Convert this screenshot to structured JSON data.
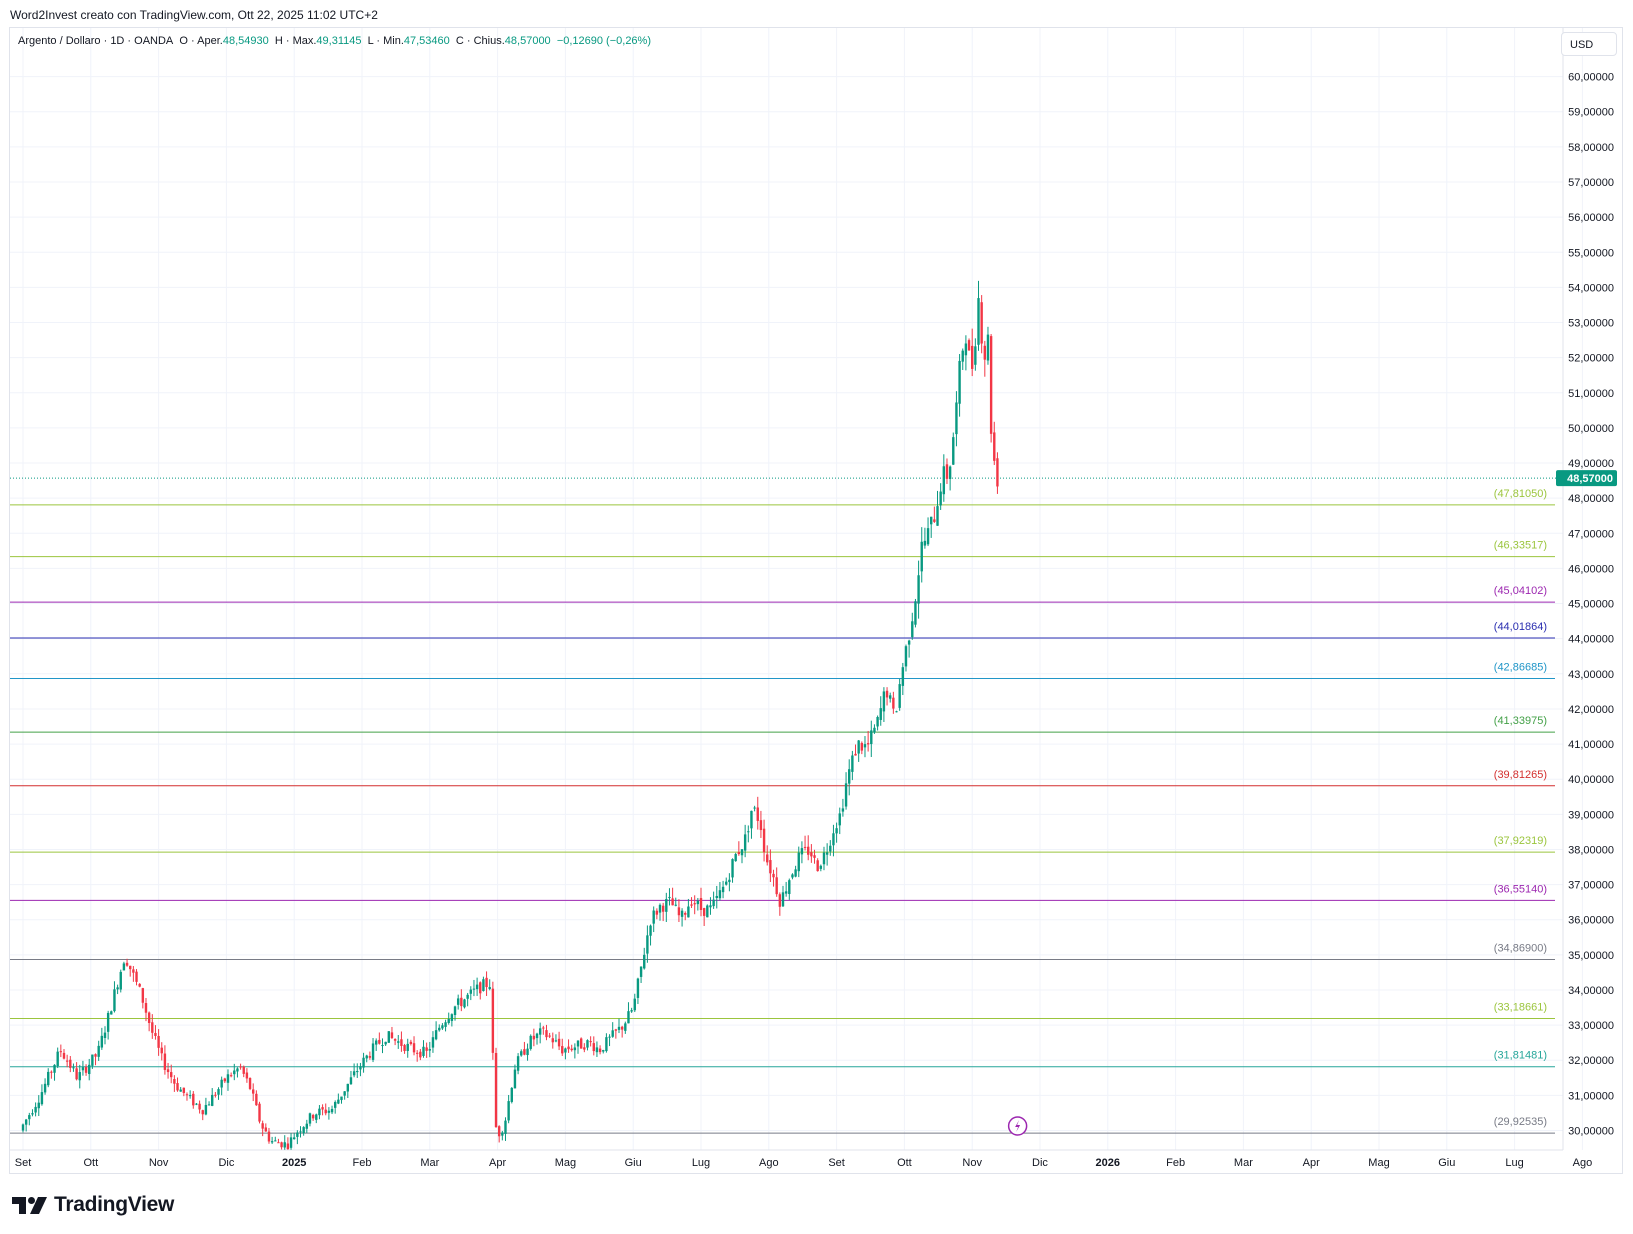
{
  "caption": "Word2Invest creato con TradingView.com, Ott 22, 2025 11:02 UTC+2",
  "legend": {
    "symbol": "Argento / Dollaro · 1D · OANDA",
    "open_label": "O · Aper.",
    "open": "48,54930",
    "high_label": "H · Max.",
    "high": "49,31145",
    "low_label": "L · Min.",
    "low": "47,53460",
    "close_label": "C · Chius.",
    "close": "48,57000",
    "change": "−0,12690 (−0,26%)"
  },
  "currency": "USD",
  "brand": "TradingView",
  "colors": {
    "up": "#089981",
    "down": "#f23645",
    "price_label_bg": "#089981",
    "grid": "#f0f3fa",
    "event_icon": "#9c27b0"
  },
  "chart_data": {
    "type": "candlestick",
    "ylim": [
      29.5,
      60.6
    ],
    "y_ticks": [
      "30,00000",
      "31,00000",
      "32,00000",
      "33,00000",
      "34,00000",
      "35,00000",
      "36,00000",
      "37,00000",
      "38,00000",
      "39,00000",
      "40,00000",
      "41,00000",
      "42,00000",
      "43,00000",
      "44,00000",
      "45,00000",
      "46,00000",
      "47,00000",
      "48,00000",
      "49,00000",
      "50,00000",
      "51,00000",
      "52,00000",
      "53,00000",
      "54,00000",
      "55,00000",
      "56,00000",
      "57,00000",
      "58,00000",
      "59,00000",
      "60,00000"
    ],
    "x_ticks": [
      {
        "label": "Set",
        "month": 0,
        "bold": false
      },
      {
        "label": "Ott",
        "month": 1,
        "bold": false
      },
      {
        "label": "Nov",
        "month": 2,
        "bold": false
      },
      {
        "label": "Dic",
        "month": 3,
        "bold": false
      },
      {
        "label": "2025",
        "month": 4,
        "bold": true
      },
      {
        "label": "Feb",
        "month": 5,
        "bold": false
      },
      {
        "label": "Mar",
        "month": 6,
        "bold": false
      },
      {
        "label": "Apr",
        "month": 7,
        "bold": false
      },
      {
        "label": "Mag",
        "month": 8,
        "bold": false
      },
      {
        "label": "Giu",
        "month": 9,
        "bold": false
      },
      {
        "label": "Lug",
        "month": 10,
        "bold": false
      },
      {
        "label": "Ago",
        "month": 11,
        "bold": false
      },
      {
        "label": "Set",
        "month": 12,
        "bold": false
      },
      {
        "label": "Ott",
        "month": 13,
        "bold": false
      },
      {
        "label": "Nov",
        "month": 14,
        "bold": false
      },
      {
        "label": "Dic",
        "month": 15,
        "bold": false
      },
      {
        "label": "2026",
        "month": 16,
        "bold": true
      },
      {
        "label": "Feb",
        "month": 17,
        "bold": false
      },
      {
        "label": "Mar",
        "month": 18,
        "bold": false
      },
      {
        "label": "Apr",
        "month": 19,
        "bold": false
      },
      {
        "label": "Mag",
        "month": 20,
        "bold": false
      },
      {
        "label": "Giu",
        "month": 21,
        "bold": false
      },
      {
        "label": "Lug",
        "month": 22,
        "bold": false
      },
      {
        "label": "Ago",
        "month": 23,
        "bold": false
      }
    ],
    "last_price": {
      "value": 48.57,
      "label": "48,57000"
    },
    "levels": [
      {
        "value": 47.8105,
        "label": "(47,81050)",
        "color": "#9bc53d"
      },
      {
        "value": 46.33517,
        "label": "(46,33517)",
        "color": "#9bc53d"
      },
      {
        "value": 45.04102,
        "label": "(45,04102)",
        "color": "#9c27b0"
      },
      {
        "value": 44.01864,
        "label": "(44,01864)",
        "color": "#2a2eb0"
      },
      {
        "value": 42.86685,
        "label": "(42,86685)",
        "color": "#2196c8"
      },
      {
        "value": 41.33975,
        "label": "(41,33975)",
        "color": "#43a047"
      },
      {
        "value": 39.81265,
        "label": "(39,81265)",
        "color": "#d32f2f"
      },
      {
        "value": 37.92319,
        "label": "(37,92319)",
        "color": "#9bc53d"
      },
      {
        "value": 36.5514,
        "label": "(36,55140)",
        "color": "#9c27b0"
      },
      {
        "value": 34.869,
        "label": "(34,86900)",
        "color": "#787b86"
      },
      {
        "value": 33.18661,
        "label": "(33,18661)",
        "color": "#9bc53d"
      },
      {
        "value": 31.81481,
        "label": "(31,81481)",
        "color": "#26a69a"
      },
      {
        "value": 29.92535,
        "label": "(29,92535)",
        "color": "#787b86"
      }
    ],
    "path_points": [
      [
        0.0,
        30.0
      ],
      [
        0.3,
        31.0
      ],
      [
        0.6,
        32.3
      ],
      [
        0.85,
        31.5
      ],
      [
        1.15,
        32.2
      ],
      [
        1.3,
        33.2
      ],
      [
        1.45,
        34.3
      ],
      [
        1.55,
        35.0
      ],
      [
        1.8,
        33.8
      ],
      [
        1.95,
        32.8
      ],
      [
        2.1,
        32.0
      ],
      [
        2.3,
        31.3
      ],
      [
        2.5,
        30.9
      ],
      [
        2.7,
        30.6
      ],
      [
        2.9,
        31.1
      ],
      [
        3.05,
        31.5
      ],
      [
        3.25,
        31.8
      ],
      [
        3.4,
        31.2
      ],
      [
        3.55,
        30.2
      ],
      [
        3.7,
        29.7
      ],
      [
        3.95,
        29.6
      ],
      [
        4.1,
        30.0
      ],
      [
        4.35,
        30.5
      ],
      [
        4.6,
        30.6
      ],
      [
        4.8,
        31.2
      ],
      [
        5.0,
        31.8
      ],
      [
        5.2,
        32.3
      ],
      [
        5.4,
        32.7
      ],
      [
        5.6,
        32.5
      ],
      [
        5.8,
        32.3
      ],
      [
        6.0,
        32.2
      ],
      [
        6.2,
        33.0
      ],
      [
        6.4,
        33.5
      ],
      [
        6.6,
        33.8
      ],
      [
        6.8,
        34.1
      ],
      [
        6.93,
        34.2
      ],
      [
        6.99,
        31.5
      ],
      [
        7.03,
        29.8
      ],
      [
        7.15,
        30.2
      ],
      [
        7.3,
        31.8
      ],
      [
        7.5,
        32.5
      ],
      [
        7.7,
        32.8
      ],
      [
        7.85,
        32.6
      ],
      [
        8.0,
        32.3
      ],
      [
        8.2,
        32.4
      ],
      [
        8.4,
        32.5
      ],
      [
        8.55,
        32.3
      ],
      [
        8.7,
        32.6
      ],
      [
        8.9,
        33.0
      ],
      [
        9.05,
        33.5
      ],
      [
        9.15,
        34.5
      ],
      [
        9.3,
        36.0
      ],
      [
        9.45,
        36.4
      ],
      [
        9.6,
        36.5
      ],
      [
        9.75,
        36.0
      ],
      [
        9.9,
        36.6
      ],
      [
        10.05,
        36.3
      ],
      [
        10.2,
        36.3
      ],
      [
        10.4,
        37.0
      ],
      [
        10.55,
        37.8
      ],
      [
        10.7,
        38.3
      ],
      [
        10.8,
        39.2
      ],
      [
        10.92,
        38.8
      ],
      [
        11.0,
        37.8
      ],
      [
        11.1,
        37.3
      ],
      [
        11.22,
        36.5
      ],
      [
        11.35,
        37.2
      ],
      [
        11.5,
        37.8
      ],
      [
        11.65,
        38.0
      ],
      [
        11.75,
        37.5
      ],
      [
        11.88,
        37.9
      ],
      [
        12.0,
        38.6
      ],
      [
        12.1,
        39.0
      ],
      [
        12.2,
        40.0
      ],
      [
        12.35,
        41.0
      ],
      [
        12.5,
        40.9
      ],
      [
        12.65,
        41.6
      ],
      [
        12.78,
        42.6
      ],
      [
        12.9,
        41.7
      ],
      [
        13.0,
        43.0
      ],
      [
        13.1,
        44.0
      ],
      [
        13.2,
        45.1
      ],
      [
        13.3,
        46.6
      ],
      [
        13.4,
        47.0
      ],
      [
        13.5,
        47.6
      ],
      [
        13.6,
        48.6
      ],
      [
        13.7,
        48.7
      ],
      [
        13.8,
        50.3
      ],
      [
        13.88,
        52.0
      ],
      [
        13.95,
        52.8
      ],
      [
        14.03,
        51.5
      ],
      [
        14.08,
        52.4
      ],
      [
        14.14,
        53.7
      ],
      [
        14.22,
        52.0
      ],
      [
        14.28,
        52.5
      ],
      [
        14.33,
        49.8
      ],
      [
        14.4,
        48.57
      ]
    ]
  }
}
